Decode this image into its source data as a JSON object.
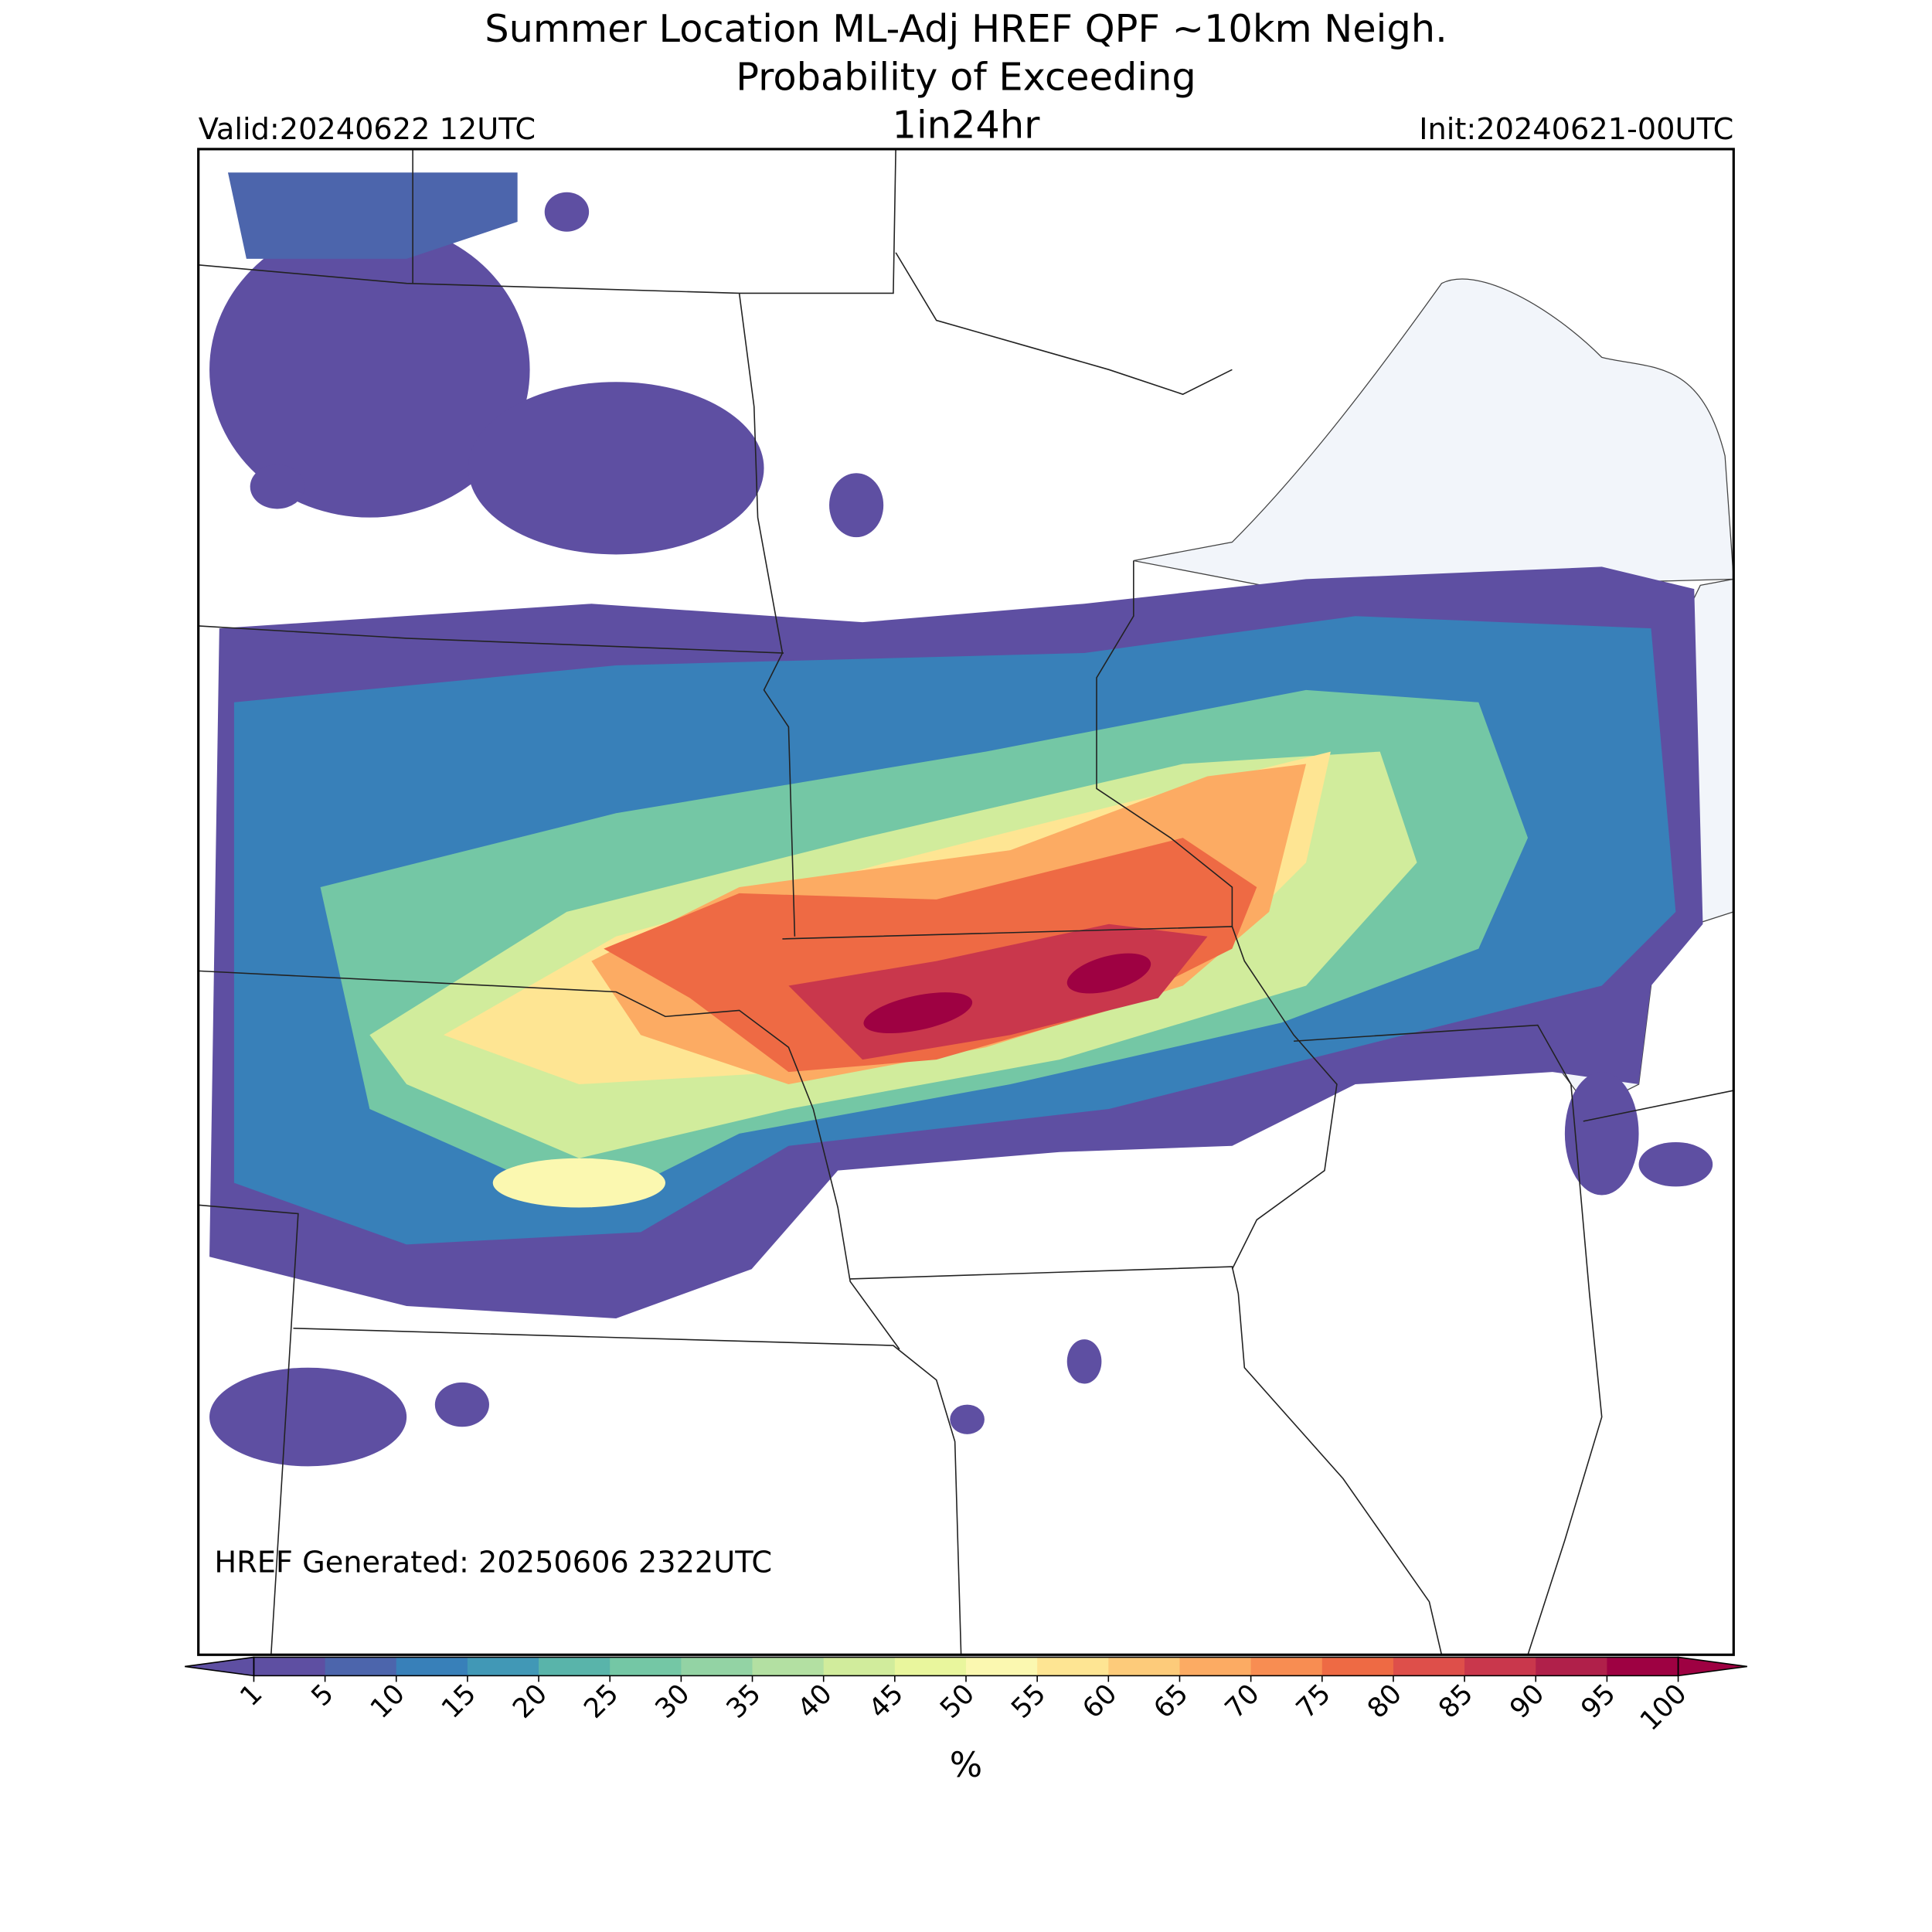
{
  "title": [
    "Summer Location ML-Adj HREF QPF ~10km Neigh.",
    "Probability of Exceeding"
  ],
  "subtitle": "1in24hr",
  "valid": "Valid:20240622 12UTC",
  "init": "Init:20240621-00UTC",
  "annotation": "HREF Generated: 20250606 2322UTC",
  "colorbar": {
    "label": "%",
    "ticks": [
      1,
      5,
      10,
      15,
      20,
      25,
      30,
      35,
      40,
      45,
      50,
      55,
      60,
      65,
      70,
      75,
      80,
      85,
      90,
      95,
      100
    ],
    "colors": [
      "#5e4fa2",
      "#4c65ac",
      "#3880b9",
      "#4198b6",
      "#59b4aa",
      "#74c7a5",
      "#93d3a4",
      "#b3e0a2",
      "#d1ec9c",
      "#e9f69d",
      "#fbf8b0",
      "#fee593",
      "#fdcb7a",
      "#fcab63",
      "#f88d52",
      "#ee6a44",
      "#de4f4a",
      "#c9374c",
      "#b0204a",
      "#9e0142"
    ],
    "extend": "both"
  }
}
